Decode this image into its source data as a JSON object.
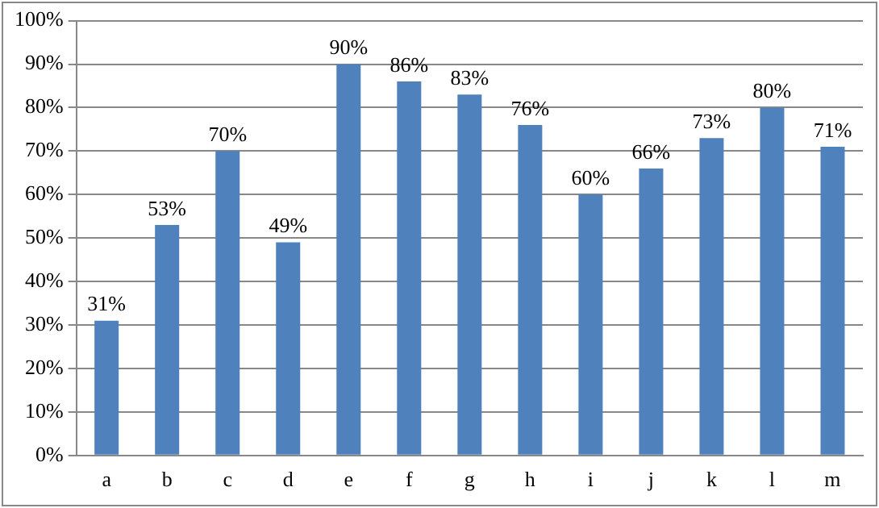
{
  "chart_data": {
    "type": "bar",
    "categories": [
      "a",
      "b",
      "c",
      "d",
      "e",
      "f",
      "g",
      "h",
      "i",
      "j",
      "k",
      "l",
      "m"
    ],
    "series": [
      {
        "color": "#4f81bd",
        "values": [
          31,
          53,
          70,
          49,
          90,
          86,
          83,
          76,
          60,
          66,
          73,
          80,
          71
        ],
        "value_labels": [
          "31%",
          "53%",
          "70%",
          "49%",
          "90%",
          "86%",
          "83%",
          "76%",
          "60%",
          "66%",
          "73%",
          "80%",
          "71%"
        ]
      }
    ],
    "ylim": [
      0,
      100
    ],
    "yticks": [
      {
        "value": 0,
        "label": "0%"
      },
      {
        "value": 10,
        "label": "10%"
      },
      {
        "value": 20,
        "label": "20%"
      },
      {
        "value": 30,
        "label": "30%"
      },
      {
        "value": 40,
        "label": "40%"
      },
      {
        "value": 50,
        "label": "50%"
      },
      {
        "value": 60,
        "label": "60%"
      },
      {
        "value": 70,
        "label": "70%"
      },
      {
        "value": 80,
        "label": "80%"
      },
      {
        "value": 90,
        "label": "90%"
      },
      {
        "value": 100,
        "label": "100%"
      }
    ],
    "grid": "y",
    "legend": false
  }
}
